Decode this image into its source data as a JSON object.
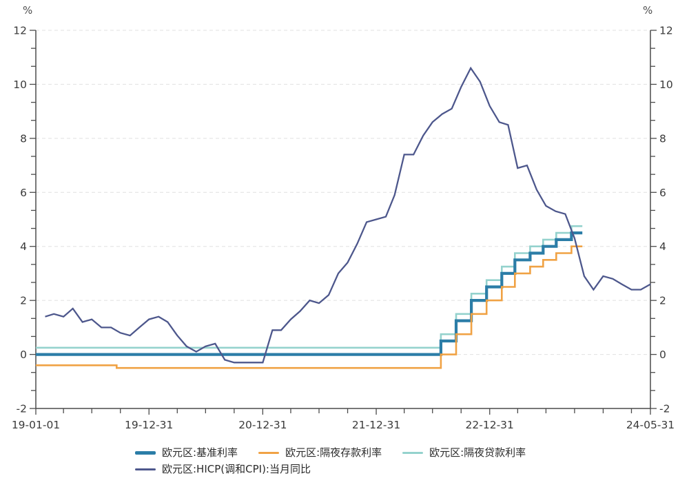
{
  "y_axis_unit_left": "%",
  "y_axis_unit_right": "%",
  "style": {
    "axis_color": "#4a4a4a",
    "tick_label_color": "#3a3a3a",
    "grid_color": "#e0e0e0",
    "background": "#ffffff"
  },
  "chart_data": {
    "type": "line",
    "title": "",
    "xlabel": "",
    "ylabel": "%",
    "ylim": [
      -2,
      12
    ],
    "y_major_ticks": [
      -2,
      0,
      2,
      4,
      6,
      8,
      10,
      12
    ],
    "y_minor_per_interval": 2,
    "grid": "dashed-horizontal",
    "legend_position": "bottom",
    "x_domain": [
      "2019-01-01",
      "2024-05-31"
    ],
    "x_tick_labels": [
      {
        "label": "19-01-01",
        "date": "2019-01-01"
      },
      {
        "label": "19-12-31",
        "date": "2019-12-31"
      },
      {
        "label": "20-12-31",
        "date": "2020-12-31"
      },
      {
        "label": "21-12-31",
        "date": "2021-12-31"
      },
      {
        "label": "22-12-31",
        "date": "2022-12-31"
      },
      {
        "label": "24-05-31",
        "date": "2024-05-31"
      }
    ],
    "x_minor_interval_months": 3,
    "series": [
      {
        "id": "lending",
        "name": "欧元区:隔夜贷款利率",
        "color": "#94d2cd",
        "width": 2.6,
        "step": true,
        "points": [
          [
            "2019-01-01",
            0.25
          ],
          [
            "2022-07-27",
            0.75
          ],
          [
            "2022-09-14",
            1.5
          ],
          [
            "2022-11-02",
            2.25
          ],
          [
            "2022-12-21",
            2.75
          ],
          [
            "2023-02-08",
            3.25
          ],
          [
            "2023-03-22",
            3.75
          ],
          [
            "2023-05-10",
            4.0
          ],
          [
            "2023-06-21",
            4.25
          ],
          [
            "2023-08-02",
            4.5
          ],
          [
            "2023-09-20",
            4.75
          ],
          [
            "2023-10-25",
            4.75
          ]
        ]
      },
      {
        "id": "mro",
        "name": "欧元区:基准利率",
        "color": "#2b7da7",
        "width": 4.2,
        "step": true,
        "points": [
          [
            "2019-01-01",
            0.0
          ],
          [
            "2022-07-27",
            0.5
          ],
          [
            "2022-09-14",
            1.25
          ],
          [
            "2022-11-02",
            2.0
          ],
          [
            "2022-12-21",
            2.5
          ],
          [
            "2023-02-08",
            3.0
          ],
          [
            "2023-03-22",
            3.5
          ],
          [
            "2023-05-10",
            3.75
          ],
          [
            "2023-06-21",
            4.0
          ],
          [
            "2023-08-02",
            4.25
          ],
          [
            "2023-09-20",
            4.5
          ],
          [
            "2023-10-25",
            4.5
          ]
        ]
      },
      {
        "id": "deposit",
        "name": "欧元区:隔夜存款利率",
        "color": "#f0a244",
        "width": 2.6,
        "step": true,
        "points": [
          [
            "2019-01-01",
            -0.4
          ],
          [
            "2019-09-18",
            -0.5
          ],
          [
            "2022-07-27",
            0.0
          ],
          [
            "2022-09-14",
            0.75
          ],
          [
            "2022-11-02",
            1.5
          ],
          [
            "2022-12-21",
            2.0
          ],
          [
            "2023-02-08",
            2.5
          ],
          [
            "2023-03-22",
            3.0
          ],
          [
            "2023-05-10",
            3.25
          ],
          [
            "2023-06-21",
            3.5
          ],
          [
            "2023-08-02",
            3.75
          ],
          [
            "2023-09-20",
            4.0
          ],
          [
            "2023-10-25",
            4.0
          ]
        ]
      },
      {
        "id": "hicp",
        "name": "欧元区:HICP(调和CPI):当月同比",
        "color": "#4d578c",
        "width": 2.3,
        "step": false,
        "points": [
          [
            "2019-01-31",
            1.4
          ],
          [
            "2019-02-28",
            1.5
          ],
          [
            "2019-03-31",
            1.4
          ],
          [
            "2019-04-30",
            1.7
          ],
          [
            "2019-05-31",
            1.2
          ],
          [
            "2019-06-30",
            1.3
          ],
          [
            "2019-07-31",
            1.0
          ],
          [
            "2019-08-31",
            1.0
          ],
          [
            "2019-09-30",
            0.8
          ],
          [
            "2019-10-31",
            0.7
          ],
          [
            "2019-11-30",
            1.0
          ],
          [
            "2019-12-31",
            1.3
          ],
          [
            "2020-01-31",
            1.4
          ],
          [
            "2020-02-29",
            1.2
          ],
          [
            "2020-03-31",
            0.7
          ],
          [
            "2020-04-30",
            0.3
          ],
          [
            "2020-05-31",
            0.1
          ],
          [
            "2020-06-30",
            0.3
          ],
          [
            "2020-07-31",
            0.4
          ],
          [
            "2020-08-31",
            -0.2
          ],
          [
            "2020-09-30",
            -0.3
          ],
          [
            "2020-10-31",
            -0.3
          ],
          [
            "2020-11-30",
            -0.3
          ],
          [
            "2020-12-31",
            -0.3
          ],
          [
            "2021-01-31",
            0.9
          ],
          [
            "2021-02-28",
            0.9
          ],
          [
            "2021-03-31",
            1.3
          ],
          [
            "2021-04-30",
            1.6
          ],
          [
            "2021-05-31",
            2.0
          ],
          [
            "2021-06-30",
            1.9
          ],
          [
            "2021-07-31",
            2.2
          ],
          [
            "2021-08-31",
            3.0
          ],
          [
            "2021-09-30",
            3.4
          ],
          [
            "2021-10-31",
            4.1
          ],
          [
            "2021-11-30",
            4.9
          ],
          [
            "2021-12-31",
            5.0
          ],
          [
            "2022-01-31",
            5.1
          ],
          [
            "2022-02-28",
            5.9
          ],
          [
            "2022-03-31",
            7.4
          ],
          [
            "2022-04-30",
            7.4
          ],
          [
            "2022-05-31",
            8.1
          ],
          [
            "2022-06-30",
            8.6
          ],
          [
            "2022-07-31",
            8.9
          ],
          [
            "2022-08-31",
            9.1
          ],
          [
            "2022-09-30",
            9.9
          ],
          [
            "2022-10-31",
            10.6
          ],
          [
            "2022-11-30",
            10.1
          ],
          [
            "2022-12-31",
            9.2
          ],
          [
            "2023-01-31",
            8.6
          ],
          [
            "2023-02-28",
            8.5
          ],
          [
            "2023-03-31",
            6.9
          ],
          [
            "2023-04-30",
            7.0
          ],
          [
            "2023-05-31",
            6.1
          ],
          [
            "2023-06-30",
            5.5
          ],
          [
            "2023-07-31",
            5.3
          ],
          [
            "2023-08-31",
            5.2
          ],
          [
            "2023-09-30",
            4.3
          ],
          [
            "2023-10-31",
            2.9
          ],
          [
            "2023-11-30",
            2.4
          ],
          [
            "2023-12-31",
            2.9
          ],
          [
            "2024-01-31",
            2.8
          ],
          [
            "2024-02-29",
            2.6
          ],
          [
            "2024-03-31",
            2.4
          ],
          [
            "2024-04-30",
            2.4
          ],
          [
            "2024-05-31",
            2.6
          ]
        ]
      }
    ],
    "legend_rows": [
      [
        "mro",
        "deposit",
        "lending"
      ],
      [
        "hicp"
      ]
    ]
  }
}
